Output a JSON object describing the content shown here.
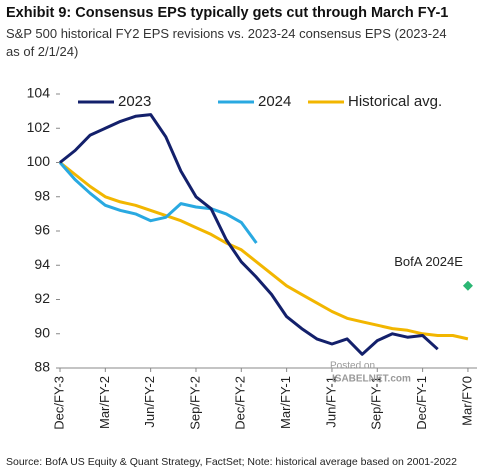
{
  "chart_data": {
    "type": "line",
    "title": "Exhibit 9: Consensus EPS typically gets cut through March FY-1",
    "subtitle": "S&P 500 historical FY2 EPS revisions vs. 2023-24 consensus EPS (2023-24 as of 2/1/24)",
    "source": "Source: BofA US Equity & Quant Strategy, FactSet; Note: historical average based on 2001-2022",
    "watermark": [
      "Posted on",
      "ISABELNET.com"
    ],
    "x": [
      0,
      1,
      2,
      3,
      4,
      5,
      6,
      7,
      8,
      9,
      10,
      11,
      12,
      13,
      14,
      15,
      16,
      17,
      18,
      19,
      20,
      21,
      22,
      23,
      24,
      25,
      26,
      27
    ],
    "series": [
      {
        "name": "2023",
        "color": "#13206b",
        "values": [
          100,
          100.7,
          101.6,
          102.0,
          102.4,
          102.7,
          102.8,
          101.5,
          99.5,
          98.0,
          97.3,
          95.5,
          94.2,
          93.3,
          92.3,
          91.0,
          90.3,
          89.7,
          89.4,
          89.7,
          88.8,
          89.6,
          90.0,
          89.8,
          89.9,
          89.1,
          null,
          null
        ]
      },
      {
        "name": "2024",
        "color": "#29a9e1",
        "values": [
          100,
          99.0,
          98.2,
          97.5,
          97.2,
          97.0,
          96.6,
          96.8,
          97.6,
          97.4,
          97.3,
          97.0,
          96.5,
          95.3,
          null,
          null,
          null,
          null,
          null,
          null,
          null,
          null,
          null,
          null,
          null,
          null,
          null,
          null
        ]
      },
      {
        "name": "Historical avg.",
        "color": "#f2b600",
        "values": [
          100,
          99.3,
          98.6,
          98.0,
          97.7,
          97.5,
          97.2,
          96.9,
          96.6,
          96.2,
          95.8,
          95.3,
          94.9,
          94.2,
          93.5,
          92.8,
          92.3,
          91.8,
          91.3,
          90.9,
          90.7,
          90.5,
          90.3,
          90.2,
          90.0,
          89.9,
          89.9,
          89.7
        ]
      }
    ],
    "point": {
      "label": "BofA 2024E",
      "x": 27,
      "y": 92.8,
      "color": "#2bb673"
    },
    "xlim": [
      0,
      27.6
    ],
    "xticks": [
      {
        "value": 0,
        "label": "Dec/FY-3"
      },
      {
        "value": 3,
        "label": "Mar/FY-2"
      },
      {
        "value": 6,
        "label": "Jun/FY-2"
      },
      {
        "value": 9,
        "label": "Sep/FY-2"
      },
      {
        "value": 12,
        "label": "Dec/FY-2"
      },
      {
        "value": 15,
        "label": "Mar/FY-1"
      },
      {
        "value": 18,
        "label": "Jun/FY-1"
      },
      {
        "value": 21,
        "label": "Sep/FY-1"
      },
      {
        "value": 24,
        "label": "Dec/FY-1"
      },
      {
        "value": 27,
        "label": "Mar/FY0"
      }
    ],
    "ylim": [
      88,
      104
    ],
    "yticks": [
      88,
      90,
      92,
      94,
      96,
      98,
      100,
      102,
      104
    ],
    "grid": false
  }
}
